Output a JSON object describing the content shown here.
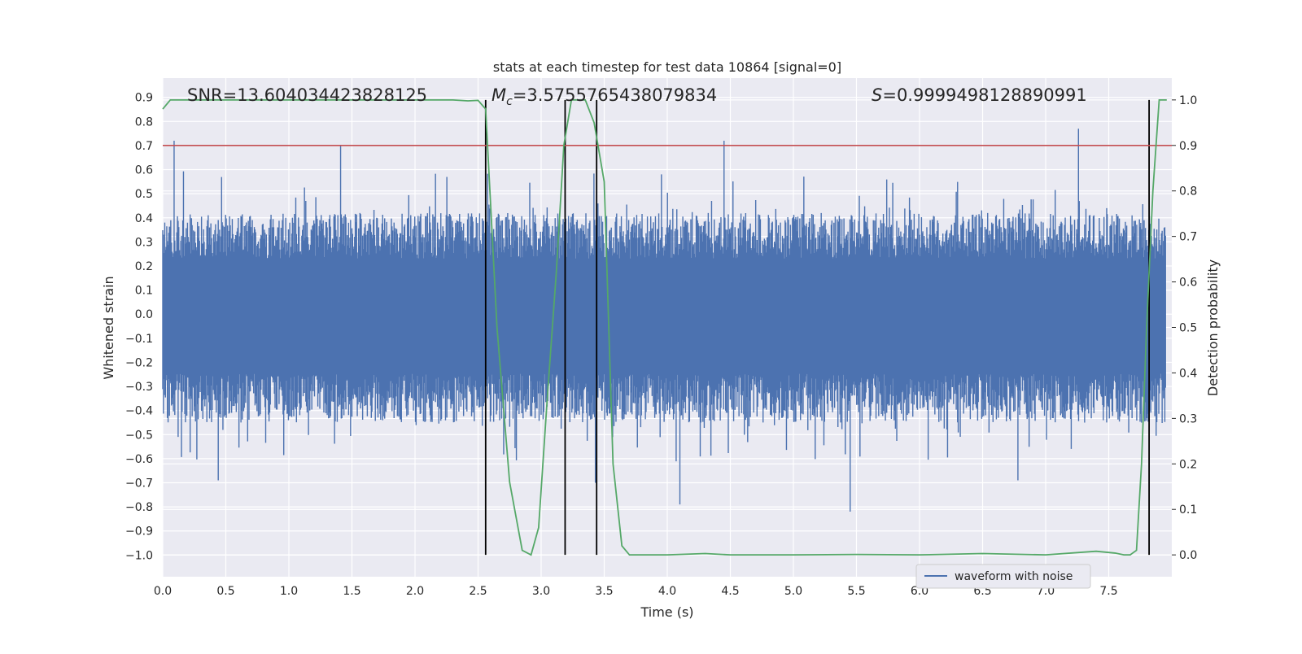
{
  "chart_data": {
    "type": "line",
    "title": "stats at each timestep for test data 10864 [signal=0]",
    "xlabel": "Time (s)",
    "ylabel": "Whitened strain",
    "y2label": "Detection probability",
    "xlim": [
      0.0,
      8.0
    ],
    "ylim": [
      -1.09,
      0.98
    ],
    "y2lim": [
      -0.048,
      1.048
    ],
    "xticks": [
      "0.0",
      "0.5",
      "1.0",
      "1.5",
      "2.0",
      "2.5",
      "3.0",
      "3.5",
      "4.0",
      "4.5",
      "5.0",
      "5.5",
      "6.0",
      "6.5",
      "7.0",
      "7.5"
    ],
    "yticks": [
      "0.9",
      "0.8",
      "0.7",
      "0.6",
      "0.5",
      "0.4",
      "0.3",
      "0.2",
      "0.1",
      "0.0",
      "-0.1",
      "-0.2",
      "-0.3",
      "-0.4",
      "-0.5",
      "-0.6",
      "-0.7",
      "-0.8",
      "-0.9",
      "-1.0"
    ],
    "y2ticks": [
      "1.0",
      "0.9",
      "0.8",
      "0.7",
      "0.6",
      "0.5",
      "0.4",
      "0.3",
      "0.2",
      "0.1",
      "0.0"
    ],
    "stats": {
      "snr": "SNR=13.604034423828125",
      "mc_symbol": "M",
      "mc_sub": "c",
      "mc_value": "=3.5755765438079834",
      "s_symbol": "S",
      "s_value": "=0.9999498128890991"
    },
    "legend": {
      "label": "waveform with noise",
      "position": "lower-right"
    },
    "threshold_line": {
      "y2": 0.9,
      "color": "#c44e52"
    },
    "vertical_lines_s": [
      2.56,
      3.19,
      3.44,
      7.82
    ],
    "series": [
      {
        "name": "waveform with noise",
        "axis": "left",
        "color": "#4c72b0",
        "kind": "noise",
        "typical_range": [
          -0.45,
          0.42
        ],
        "extremes": {
          "max": 0.77,
          "min": -0.82
        }
      },
      {
        "name": "detection probability",
        "axis": "right",
        "color": "#55a868",
        "x": [
          0.0,
          0.06,
          0.1,
          0.5,
          1.0,
          1.5,
          2.0,
          2.3,
          2.42,
          2.5,
          2.56,
          2.65,
          2.75,
          2.85,
          2.92,
          2.98,
          3.05,
          3.12,
          3.18,
          3.24,
          3.28,
          3.35,
          3.42,
          3.5,
          3.57,
          3.64,
          3.7,
          3.8,
          4.0,
          4.3,
          4.5,
          5.0,
          5.5,
          6.0,
          6.5,
          7.0,
          7.4,
          7.55,
          7.62,
          7.67,
          7.72,
          7.76,
          7.8,
          7.85,
          7.9,
          7.93,
          7.96
        ],
        "y": [
          0.98,
          1.0,
          1.0,
          1.0,
          1.0,
          1.0,
          1.0,
          1.0,
          0.998,
          0.999,
          0.98,
          0.5,
          0.16,
          0.01,
          0.0,
          0.06,
          0.35,
          0.62,
          0.9,
          1.0,
          1.0,
          1.0,
          0.95,
          0.82,
          0.2,
          0.02,
          0.0,
          0.0,
          0.0,
          0.003,
          0.0,
          0.0,
          0.001,
          0.0,
          0.003,
          0.0,
          0.008,
          0.004,
          0.0,
          0.0,
          0.01,
          0.2,
          0.5,
          0.8,
          1.0,
          1.0,
          1.0
        ]
      }
    ]
  }
}
